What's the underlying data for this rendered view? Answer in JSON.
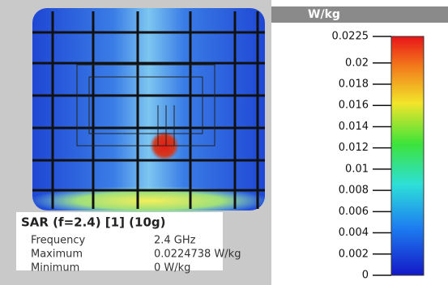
{
  "colorbar": {
    "unit": "W/kg",
    "range": [
      0,
      0.0225
    ],
    "ticks": [
      0.0225,
      0.02,
      0.018,
      0.016,
      0.014,
      0.012,
      0.01,
      0.008,
      0.006,
      0.004,
      0.002,
      0
    ]
  },
  "info": {
    "title": "SAR (f=2.4) [1] (10g)",
    "rows": [
      [
        "Frequency",
        "2.4 GHz"
      ],
      [
        "Maximum",
        "0.0224738 W/kg"
      ],
      [
        "Minimum",
        "0 W/kg"
      ]
    ]
  }
}
